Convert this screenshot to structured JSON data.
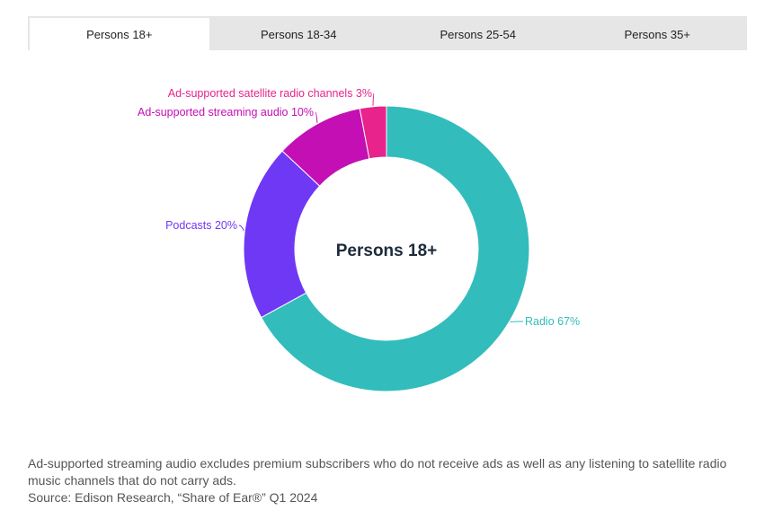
{
  "tabs": [
    {
      "label": "Persons 18+",
      "active": true
    },
    {
      "label": "Persons 18-34",
      "active": false
    },
    {
      "label": "Persons 25-54",
      "active": false
    },
    {
      "label": "Persons 35+",
      "active": false
    }
  ],
  "chart_data": {
    "type": "pie",
    "style": "donut",
    "center_label": "Persons 18+",
    "slices": [
      {
        "name": "Radio",
        "label": "Radio 67%",
        "value": 67,
        "color": "#33bcbc"
      },
      {
        "name": "Podcasts",
        "label": "Podcasts 20%",
        "value": 20,
        "color": "#6f38f5"
      },
      {
        "name": "Ad-supported streaming audio",
        "label": "Ad-supported streaming audio 10%",
        "value": 10,
        "color": "#c40fb4"
      },
      {
        "name": "Ad-supported satellite radio channels",
        "label": "Ad-supported satellite radio channels 3%",
        "value": 3,
        "color": "#e8238c"
      }
    ]
  },
  "footnote": {
    "text": "Ad-supported streaming audio excludes premium subscribers who do not receive ads as well as any listening to satellite radio music channels that do not carry ads.",
    "source": "Source: Edison Research, “Share of Ear®” Q1 2024"
  }
}
